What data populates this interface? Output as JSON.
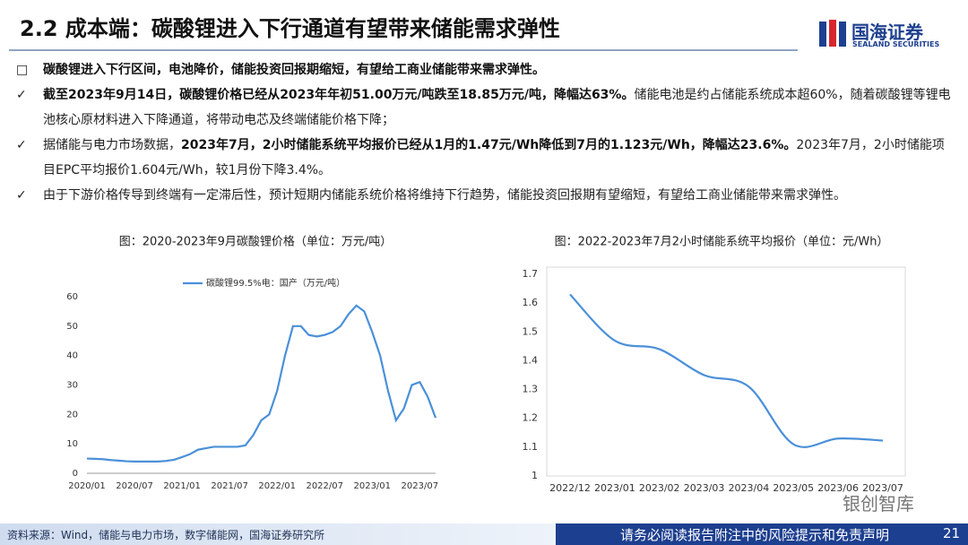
{
  "header": {
    "title": "2.2 成本端：碳酸锂进入下行通道有望带来储能需求弹性",
    "logo": "国海证券",
    "logo_en": "SEALAND SECURITIES"
  },
  "bullets": [
    {
      "marker": "□",
      "segments": [
        {
          "text": "碳酸锂进入下行区间，电池降价，储能投资回报期缩短，有望给工商业储能带来需求弹性。",
          "bold": true
        }
      ]
    },
    {
      "marker": "✓",
      "segments": [
        {
          "text": "截至2023年9月14日，碳酸锂价格已经从2023年年初51.00万元/吨跌至18.85万元/吨，降幅达63%。",
          "bold": true
        },
        {
          "text": "储能电池是约占储能系统成本超60%，随着碳酸锂等锂电池核心原材料进入下降通道，将带动电芯及终端储能价格下降；",
          "bold": false
        }
      ]
    },
    {
      "marker": "✓",
      "segments": [
        {
          "text": "据储能与电力市场数据，",
          "bold": false
        },
        {
          "text": "2023年7月，2小时储能系统平均报价已经从1月的1.47元/Wh降低到7月的1.123元/Wh，降幅达23.6%。",
          "bold": true
        },
        {
          "text": "2023年7月，2小时储能项目EPC平均报价1.604元/Wh，较1月份下降3.4%。",
          "bold": false
        }
      ]
    },
    {
      "marker": "✓",
      "segments": [
        {
          "text": "由于下游价格传导到终端有一定滞后性，预计短期内储能系统价格将维持下行趋势，储能投资回报期有望缩短，有望给工商业储能带来需求弹性。",
          "bold": false
        }
      ]
    }
  ],
  "chart_data": [
    {
      "type": "line",
      "title": "图：2020-2023年9月碳酸锂价格（单位：万元/吨）",
      "categories": [
        "2020/01",
        null,
        null,
        null,
        null,
        null,
        "2020/07",
        null,
        null,
        null,
        null,
        null,
        "2021/01",
        null,
        null,
        null,
        null,
        null,
        "2021/07",
        null,
        null,
        null,
        null,
        null,
        "2022/01",
        null,
        null,
        null,
        null,
        null,
        "2022/07",
        null,
        null,
        null,
        null,
        null,
        "2023/01",
        null,
        null,
        null,
        null,
        null,
        "2023/07",
        null,
        null
      ],
      "series": [
        {
          "name": "碳酸锂99.5%电：国产（万元/吨）",
          "color": "#4a90d9",
          "values": [
            5,
            4.9,
            4.8,
            4.5,
            4.3,
            4.1,
            4,
            4,
            4,
            4,
            4.2,
            4.6,
            5.5,
            6.5,
            8,
            8.5,
            9,
            9,
            9,
            9,
            9.5,
            13,
            18,
            20,
            28,
            40,
            50,
            50,
            47,
            46.5,
            47,
            48,
            50,
            54,
            57,
            55,
            48,
            40,
            28,
            18,
            22,
            30,
            31,
            26,
            18.85
          ]
        }
      ],
      "ylim": [
        0,
        60
      ],
      "yticks": [
        0,
        10,
        20,
        30,
        40,
        50,
        60
      ],
      "legend": "top"
    },
    {
      "type": "line",
      "title": "图：2022-2023年7月2小时储能系统平均报价（单位：元/Wh）",
      "categories": [
        "2022/12",
        "2023/01",
        "2023/02",
        "2023/03",
        "2023/04",
        "2023/05",
        "2023/06",
        "2023/07"
      ],
      "series": [
        {
          "color": "#4a90d9",
          "values": [
            1.63,
            1.47,
            1.44,
            1.35,
            1.31,
            1.11,
            1.13,
            1.123
          ]
        }
      ],
      "ylim": [
        1,
        1.7
      ],
      "yticks": [
        1,
        1.1,
        1.2,
        1.3,
        1.4,
        1.5,
        1.6,
        1.7
      ]
    }
  ],
  "footer": {
    "source": "资料来源：Wind，储能与电力市场，数字储能网，国海证券研究所",
    "disclaimer": "请务必阅读报告附注中的风险提示和免责声明",
    "page": "21",
    "watermark": "银创智库"
  }
}
